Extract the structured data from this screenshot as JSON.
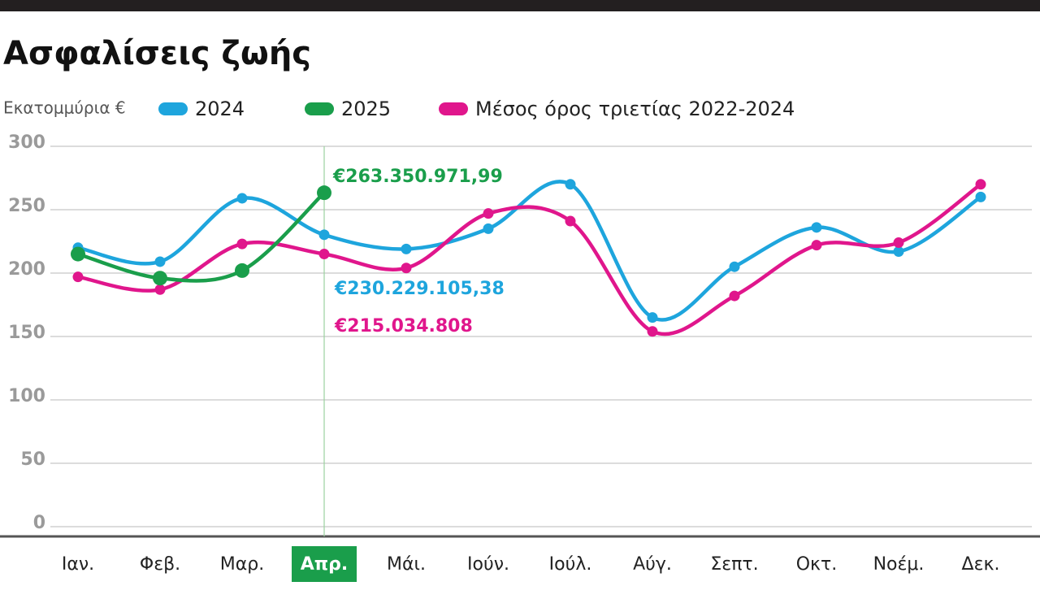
{
  "chart_data": {
    "type": "line",
    "title": "Ασφαλίσεις ζωής",
    "y_label": "Εκατομμύρια €",
    "categories": [
      "Ιαν.",
      "Φεβ.",
      "Μαρ.",
      "Απρ.",
      "Μάι.",
      "Ιούν.",
      "Ιούλ.",
      "Αύγ.",
      "Σεπτ.",
      "Οκτ.",
      "Νοέμ.",
      "Δεκ."
    ],
    "highlight_index": 3,
    "series": [
      {
        "name": "2024",
        "color": "#1ea5dd",
        "values": [
          220,
          209,
          259,
          230.23,
          219,
          235,
          270,
          165,
          205,
          236,
          217,
          260
        ]
      },
      {
        "name": "2025",
        "color": "#1a9e4b",
        "values": [
          215,
          196,
          202,
          263.35,
          null,
          null,
          null,
          null,
          null,
          null,
          null,
          null
        ]
      },
      {
        "name": "Μέσος όρος τριετίας 2022-2024",
        "color": "#e0168c",
        "values": [
          197,
          187,
          223,
          215.03,
          204,
          247,
          241,
          154,
          182,
          222,
          224,
          270
        ]
      }
    ],
    "annotations": [
      {
        "text": "€263.350.971,99",
        "color": "#1a9e4b"
      },
      {
        "text": "€230.229.105,38",
        "color": "#1ea5dd"
      },
      {
        "text": "€215.034.808",
        "color": "#e0168c"
      }
    ],
    "ylim": [
      0,
      300
    ],
    "yticks": [
      0,
      50,
      100,
      150,
      200,
      250,
      300
    ],
    "grid": true
  }
}
